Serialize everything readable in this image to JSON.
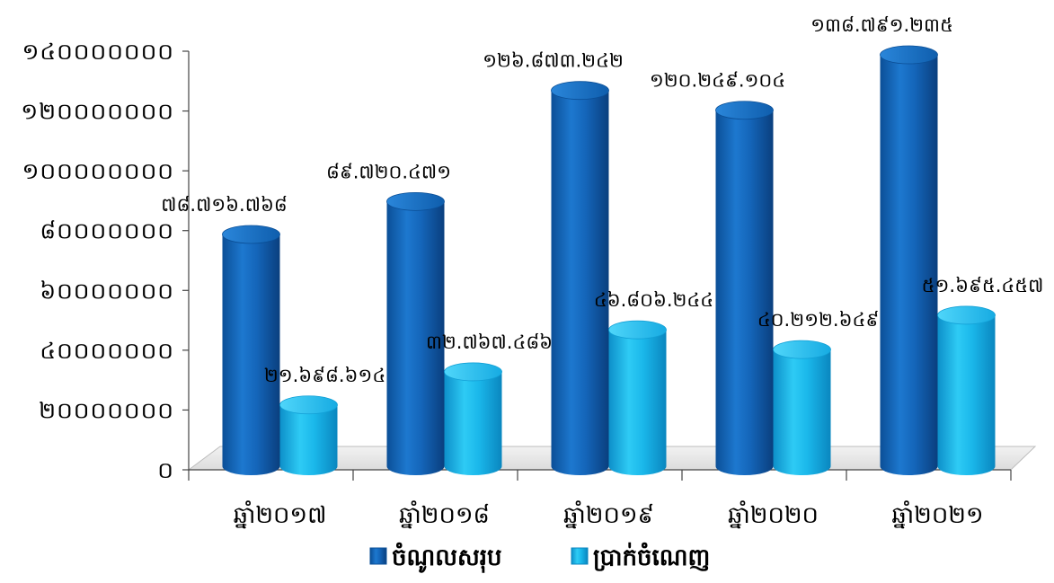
{
  "chart_data": {
    "type": "bar",
    "title": "",
    "xlabel": "",
    "ylabel": "",
    "ylim": [
      0,
      140000000
    ],
    "y_ticks": [
      0,
      20000000,
      40000000,
      60000000,
      80000000,
      100000000,
      120000000,
      140000000
    ],
    "y_tick_labels": [
      "០",
      "២០០០០០០០",
      "៤០០០០០០០",
      "៦០០០០០០០",
      "៨០០០០០០០",
      "១០០០០០០០០",
      "១២០០០០០០០",
      "១៤០០០០០០០"
    ],
    "categories": [
      "ឆ្នាំ២០១៧",
      "ឆ្នាំ២០១៨",
      "ឆ្នាំ២០១៩",
      "ឆ្នាំ២០២០",
      "ឆ្នាំ២០២១"
    ],
    "grid": false,
    "legend_position": "bottom",
    "series": [
      {
        "name": "ចំណូលសរុប",
        "color": "#0a5fb4",
        "values": [
          78716768,
          89720471,
          126873242,
          120249104,
          138791235
        ],
        "labels": [
          "៧៨.៧១៦.៧៦៨",
          "៨៩.៧២០.៤៧១",
          "១២៦.៨៧៣.២៤២",
          "១២០.២៤៩.១០៤",
          "១៣៨.៧៩១.២៣៥"
        ]
      },
      {
        "name": "ប្រាក់ចំណេញ",
        "color": "#19b5ea",
        "values": [
          21698614,
          32767486,
          46806244,
          40212649,
          51695457
        ],
        "labels": [
          "២១.៦៩៨.៦១៤",
          "៣២.៧៦៧.៤៨៦",
          "៤៦.៨០៦.២៤៤",
          "៤០.២១២.៦៤៩",
          "៥១.៦៩៥.៤៥៧"
        ]
      }
    ]
  }
}
